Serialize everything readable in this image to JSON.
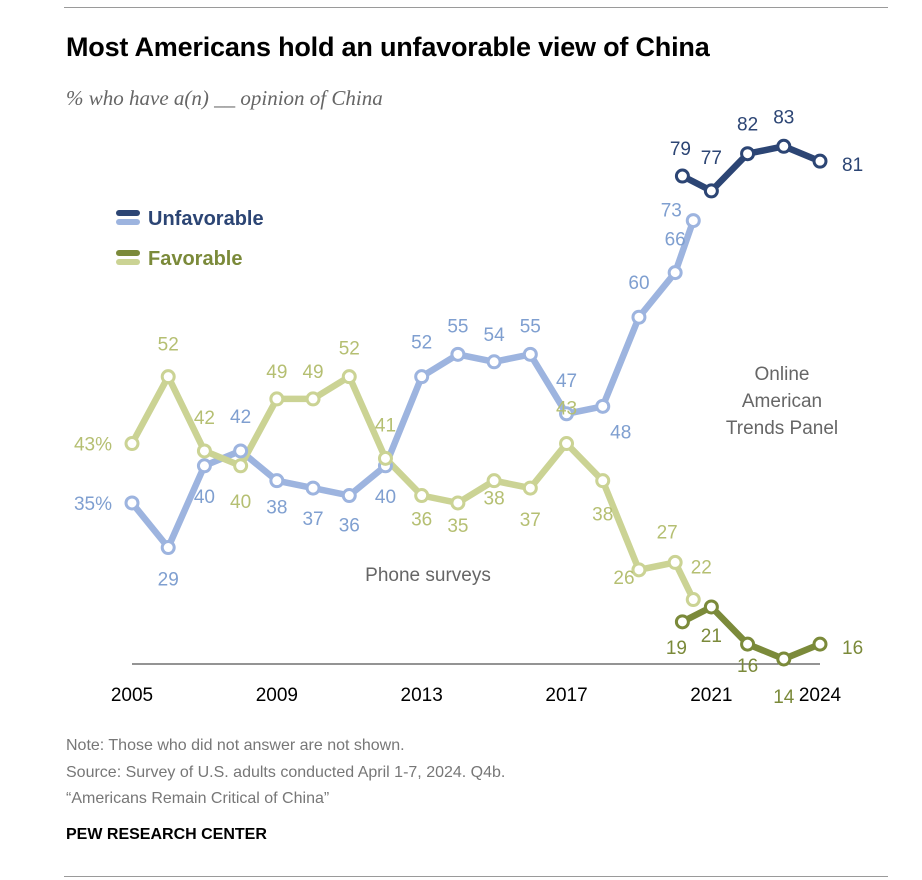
{
  "header": {
    "title": "Most Americans hold an unfavorable view of China",
    "subtitle": "% who have a(n) __ opinion of China"
  },
  "footer": {
    "note": "Note: Those who did not answer are not shown.",
    "source": "Source: Survey of U.S. adults conducted April 1-7, 2024. Q4b.",
    "report": "“Americans Remain Critical of China”",
    "brand": "PEW RESEARCH CENTER"
  },
  "chart_data": {
    "type": "line",
    "title": "Most Americans hold an unfavorable view of China",
    "subtitle": "% who have a(n) __ opinion of China",
    "xlabel": "",
    "ylabel": "",
    "xlim": [
      2005,
      2024
    ],
    "ylim": [
      10,
      90
    ],
    "x_ticks": [
      "2005",
      "2009",
      "2013",
      "2017",
      "2021",
      "2024"
    ],
    "grid": false,
    "legend_position": "top-left",
    "legend": [
      {
        "label": "Unfavorable",
        "colors": [
          "#2c4574",
          "#9db4df"
        ]
      },
      {
        "label": "Favorable",
        "colors": [
          "#7b8a3a",
          "#cbd394"
        ]
      }
    ],
    "annotations": [
      "Phone surveys",
      "Online American Trends Panel"
    ],
    "series": [
      {
        "name": "Unfavorable (Phone surveys)",
        "color": "#9db4df",
        "label_color": "#7f9fd0",
        "points": [
          {
            "x": 2005.0,
            "y": 35,
            "label": "35%"
          },
          {
            "x": 2006.0,
            "y": 29,
            "label": "29"
          },
          {
            "x": 2007.0,
            "y": 40,
            "label": "40"
          },
          {
            "x": 2008.0,
            "y": 42,
            "label": "42"
          },
          {
            "x": 2009.0,
            "y": 38,
            "label": "38"
          },
          {
            "x": 2010.0,
            "y": 37,
            "label": "37"
          },
          {
            "x": 2011.0,
            "y": 36,
            "label": "36"
          },
          {
            "x": 2012.0,
            "y": 40,
            "label": "40"
          },
          {
            "x": 2013.0,
            "y": 52,
            "label": "52"
          },
          {
            "x": 2014.0,
            "y": 55,
            "label": "55"
          },
          {
            "x": 2015.0,
            "y": 54,
            "label": "54"
          },
          {
            "x": 2016.0,
            "y": 55,
            "label": "55"
          },
          {
            "x": 2017.0,
            "y": 47,
            "label": "47"
          },
          {
            "x": 2018.0,
            "y": 48,
            "label": "48"
          },
          {
            "x": 2019.0,
            "y": 60,
            "label": "60"
          },
          {
            "x": 2020.0,
            "y": 66,
            "label": "66"
          },
          {
            "x": 2020.5,
            "y": 73,
            "label": "73"
          }
        ]
      },
      {
        "name": "Unfavorable (Online American Trends Panel)",
        "color": "#2c4574",
        "label_color": "#2c4574",
        "points": [
          {
            "x": 2020.2,
            "y": 79,
            "label": "79"
          },
          {
            "x": 2021.0,
            "y": 77,
            "label": "77"
          },
          {
            "x": 2022.0,
            "y": 82,
            "label": "82"
          },
          {
            "x": 2023.0,
            "y": 83,
            "label": "83"
          },
          {
            "x": 2024.0,
            "y": 81,
            "label": "81"
          }
        ]
      },
      {
        "name": "Favorable (Phone surveys)",
        "color": "#cbd394",
        "label_color": "#b5bf72",
        "points": [
          {
            "x": 2005.0,
            "y": 43,
            "label": "43%"
          },
          {
            "x": 2006.0,
            "y": 52,
            "label": "52"
          },
          {
            "x": 2007.0,
            "y": 42,
            "label": "42"
          },
          {
            "x": 2008.0,
            "y": 40,
            "label": "40"
          },
          {
            "x": 2009.0,
            "y": 49,
            "label": "49"
          },
          {
            "x": 2010.0,
            "y": 49,
            "label": "49"
          },
          {
            "x": 2011.0,
            "y": 52,
            "label": "52"
          },
          {
            "x": 2012.0,
            "y": 41,
            "label": "41"
          },
          {
            "x": 2013.0,
            "y": 36,
            "label": "36"
          },
          {
            "x": 2014.0,
            "y": 35,
            "label": "35"
          },
          {
            "x": 2015.0,
            "y": 38,
            "label": "38"
          },
          {
            "x": 2016.0,
            "y": 37,
            "label": "37"
          },
          {
            "x": 2017.0,
            "y": 43,
            "label": "43"
          },
          {
            "x": 2018.0,
            "y": 38,
            "label": "38"
          },
          {
            "x": 2019.0,
            "y": 26,
            "label": "26"
          },
          {
            "x": 2020.0,
            "y": 27,
            "label": "27"
          },
          {
            "x": 2020.5,
            "y": 22,
            "label": "22"
          }
        ]
      },
      {
        "name": "Favorable (Online American Trends Panel)",
        "color": "#7b8a3a",
        "label_color": "#7b8a3a",
        "points": [
          {
            "x": 2020.2,
            "y": 19,
            "label": "19"
          },
          {
            "x": 2021.0,
            "y": 21,
            "label": "21"
          },
          {
            "x": 2022.0,
            "y": 16,
            "label": "16"
          },
          {
            "x": 2023.0,
            "y": 14,
            "label": "14"
          },
          {
            "x": 2024.0,
            "y": 16,
            "label": "16"
          }
        ]
      }
    ]
  }
}
